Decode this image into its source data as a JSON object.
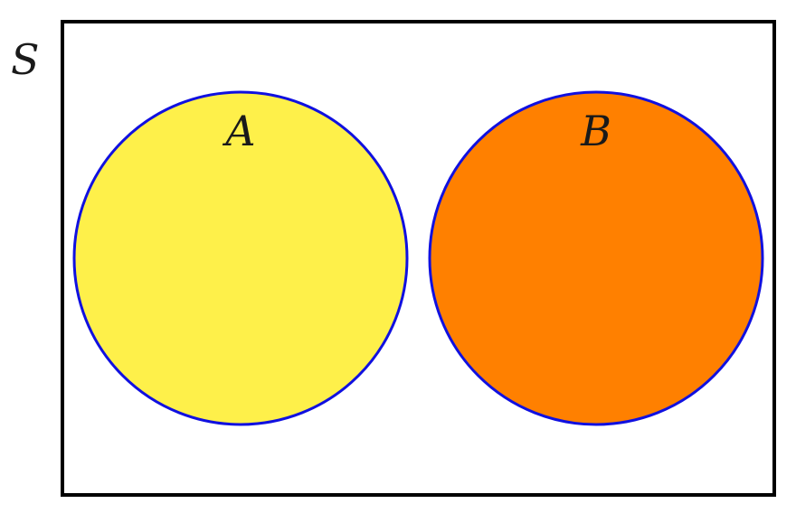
{
  "universe": {
    "label": "S"
  },
  "sets": [
    {
      "label": "A",
      "fill": "#fef04a",
      "stroke": "#1010e0"
    },
    {
      "label": "B",
      "fill": "#ff8000",
      "stroke": "#1010e0"
    }
  ],
  "relationship": "disjoint",
  "colors": {
    "frame": "#000000",
    "background": "#ffffff"
  }
}
